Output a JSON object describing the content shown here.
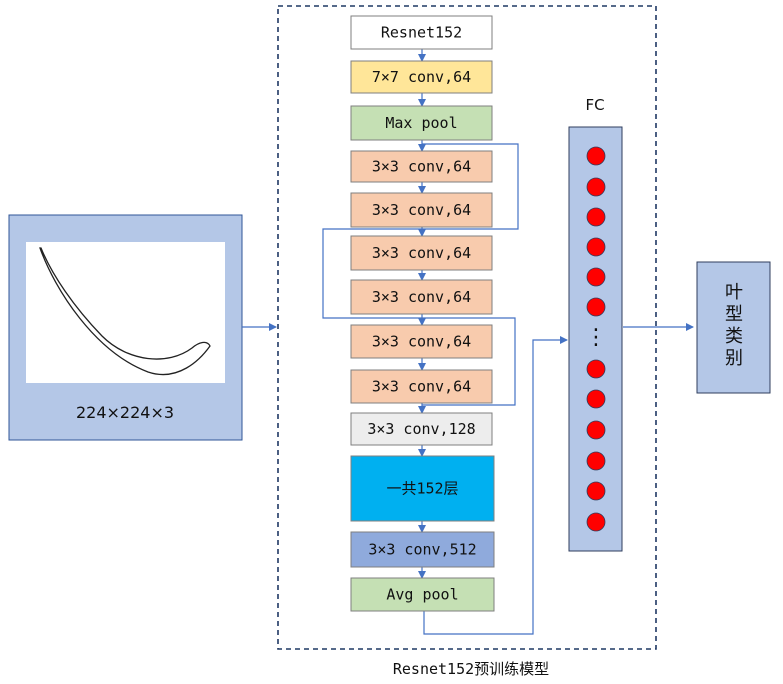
{
  "input": {
    "size_label": "224×224×3",
    "panel_color": "#b4c7e7",
    "border_color": "#2f5597"
  },
  "model": {
    "caption": "Resnet152预训练模型",
    "frame_color": "#1f3864",
    "layers": [
      {
        "label": "Resnet152",
        "fill": "#ffffff"
      },
      {
        "label": "7×7 conv,64",
        "fill": "#ffe699"
      },
      {
        "label": "Max pool",
        "fill": "#c5e0b4"
      },
      {
        "label": "3×3 conv,64",
        "fill": "#f8cbad"
      },
      {
        "label": "3×3 conv,64",
        "fill": "#f8cbad"
      },
      {
        "label": "3×3 conv,64",
        "fill": "#f8cbad"
      },
      {
        "label": "3×3 conv,64",
        "fill": "#f8cbad"
      },
      {
        "label": "3×3 conv,64",
        "fill": "#f8cbad"
      },
      {
        "label": "3×3 conv,64",
        "fill": "#f8cbad"
      },
      {
        "label": "3×3 conv,128",
        "fill": "#ededed"
      },
      {
        "label": "一共152层",
        "fill": "#00b0f0"
      },
      {
        "label": "3×3 conv,512",
        "fill": "#8faadc"
      },
      {
        "label": "Avg pool",
        "fill": "#c5e0b4"
      }
    ]
  },
  "fc": {
    "title": "FC",
    "panel_color": "#b4c7e7",
    "neuron_color": "#ff0000",
    "ellipsis": "⋮"
  },
  "output": {
    "label": "叶型类别",
    "panel_color": "#b4c7e7"
  },
  "colors": {
    "arrow": "#4472c4",
    "box_border": "#7f7f7f"
  }
}
